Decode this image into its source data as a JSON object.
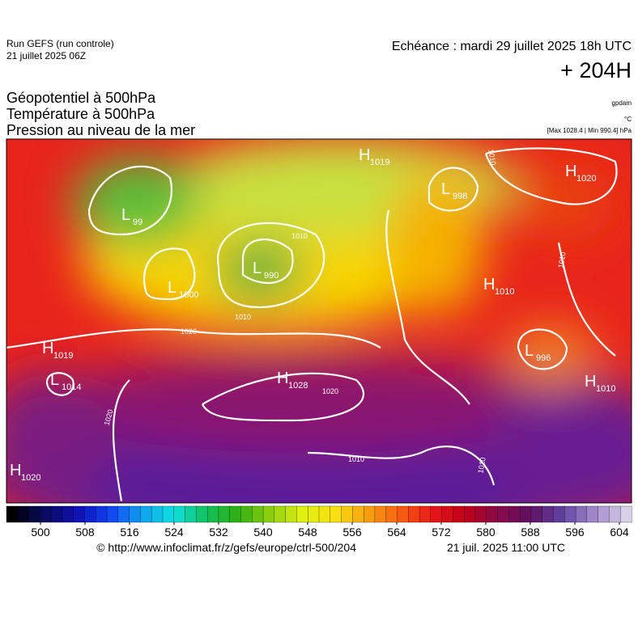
{
  "header": {
    "run": "Run GEFS (run controle)",
    "date": "21 juillet 2025 06Z",
    "echeance": "Echéance : mardi 29 juillet 2025 18h UTC",
    "lead": "+ 204H"
  },
  "titles": [
    "Géopotentiel à 500hPa",
    "Température à 500hPa",
    "Pression au niveau de la mer"
  ],
  "units": [
    "gpdam",
    "°C",
    "[Max 1028.4 | Min 990.4] hPa"
  ],
  "centers": [
    {
      "kind": "H",
      "value": 1019
    },
    {
      "kind": "L",
      "value": 998
    },
    {
      "kind": "H",
      "value": 1020
    },
    {
      "kind": "L",
      "value": 99
    },
    {
      "kind": "L",
      "value": 990
    },
    {
      "kind": "L",
      "value": 1000
    },
    {
      "kind": "H",
      "value": 1010
    },
    {
      "kind": "H",
      "value": 1019
    },
    {
      "kind": "L",
      "value": 1014
    },
    {
      "kind": "H",
      "value": 1028
    },
    {
      "kind": "L",
      "value": 996
    },
    {
      "kind": "H",
      "value": 1010
    },
    {
      "kind": "H",
      "value": 1020
    }
  ],
  "isobar_labels": [
    1020,
    1020,
    1020,
    1010,
    1010,
    1010,
    1010,
    1010,
    1010
  ],
  "colorbar": {
    "ticks": [
      500,
      508,
      516,
      524,
      532,
      540,
      548,
      556,
      564,
      572,
      580,
      588,
      596,
      604
    ]
  },
  "footer": {
    "url": "© http://www.infoclimat.fr/z/gefs/europe/ctrl-500/204",
    "time": "21 juil. 2025 11:00 UTC"
  }
}
